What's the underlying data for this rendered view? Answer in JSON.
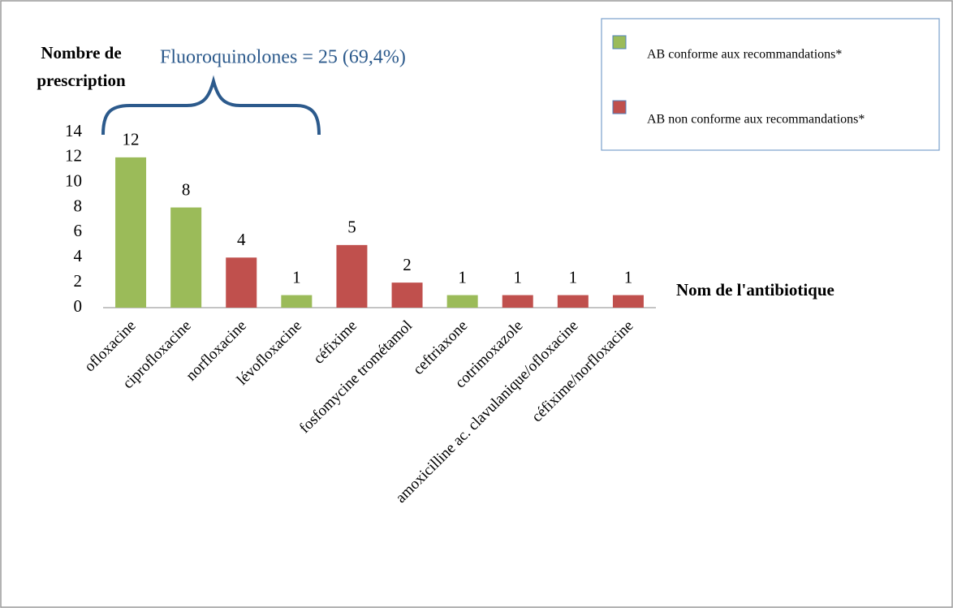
{
  "chart_data": {
    "type": "bar",
    "ylabel_lines": [
      "Nombre de",
      "prescription"
    ],
    "xlabel": "Nom de l'antibiotique",
    "annotation": "Fluoroquinolones = 25 (69,4%)",
    "categories": [
      "ofloxacine",
      "ciprofloxacine",
      "norfloxacine",
      "lévofloxacine",
      "céfixime",
      "fosfomycine trométamol",
      "ceftriaxone",
      "cotrimoxazole",
      "amoxicilline ac. clavulanique/ofloxacine",
      "céfixime/norfloxacine"
    ],
    "values": [
      12,
      8,
      4,
      1,
      5,
      2,
      1,
      1,
      1,
      1
    ],
    "colors": [
      "#9bbb59",
      "#9bbb59",
      "#c0504d",
      "#9bbb59",
      "#c0504d",
      "#c0504d",
      "#9bbb59",
      "#c0504d",
      "#c0504d",
      "#c0504d"
    ],
    "legend": [
      {
        "name": "AB conforme aux recommandations*",
        "color": "#9bbb59"
      },
      {
        "name": "AB non conforme aux recommandations*",
        "color": "#c0504d"
      }
    ],
    "legend_position": "upper right",
    "ylim": [
      0,
      14
    ],
    "yticks": [
      0,
      2,
      4,
      6,
      8,
      10,
      12,
      14
    ],
    "grid": false
  }
}
